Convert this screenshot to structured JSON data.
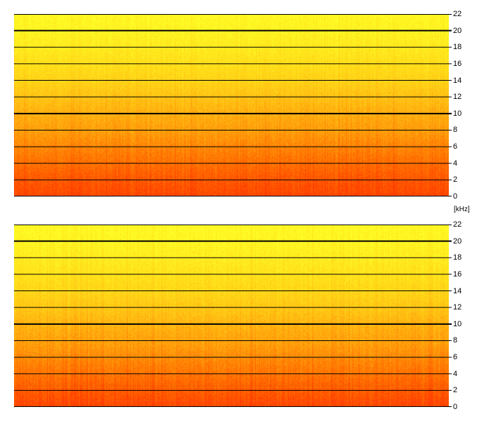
{
  "chart_data": [
    {
      "type": "heatmap",
      "description_axis": "frequency",
      "yaxis": {
        "unit": "kHz",
        "ylim": [
          0,
          22
        ],
        "ticks": [
          "22",
          "20",
          "18",
          "16",
          "14",
          "12",
          "10",
          "8",
          "6",
          "4",
          "2",
          "0"
        ],
        "tick_values": [
          22,
          20,
          18,
          16,
          14,
          12,
          10,
          8,
          6,
          4,
          2,
          0
        ],
        "major_gridlines": [
          20,
          10
        ]
      },
      "colormap": [
        "#ff3c00",
        "#ff6a00",
        "#ff9a0a",
        "#ffc414",
        "#ffe21a",
        "#ffff28"
      ],
      "intensity_by_frequency": [
        {
          "khz": 0,
          "level": 0.05
        },
        {
          "khz": 2,
          "level": 0.12
        },
        {
          "khz": 4,
          "level": 0.22
        },
        {
          "khz": 6,
          "level": 0.32
        },
        {
          "khz": 8,
          "level": 0.42
        },
        {
          "khz": 10,
          "level": 0.5
        },
        {
          "khz": 12,
          "level": 0.6
        },
        {
          "khz": 14,
          "level": 0.7
        },
        {
          "khz": 16,
          "level": 0.78
        },
        {
          "khz": 18,
          "level": 0.86
        },
        {
          "khz": 20,
          "level": 0.92
        },
        {
          "khz": 22,
          "level": 0.95
        }
      ]
    },
    {
      "type": "heatmap",
      "description_axis": "frequency",
      "yaxis": {
        "unit": "kHz",
        "ylim": [
          0,
          22
        ],
        "ticks": [
          "22",
          "20",
          "18",
          "16",
          "14",
          "12",
          "10",
          "8",
          "6",
          "4",
          "2",
          "0"
        ],
        "tick_values": [
          22,
          20,
          18,
          16,
          14,
          12,
          10,
          8,
          6,
          4,
          2,
          0
        ],
        "major_gridlines": [
          20,
          10
        ]
      },
      "colormap": [
        "#ff3c00",
        "#ff6a00",
        "#ff9a0a",
        "#ffc414",
        "#ffe21a",
        "#ffff28"
      ],
      "intensity_by_frequency": [
        {
          "khz": 0,
          "level": 0.04
        },
        {
          "khz": 2,
          "level": 0.14
        },
        {
          "khz": 4,
          "level": 0.24
        },
        {
          "khz": 6,
          "level": 0.34
        },
        {
          "khz": 8,
          "level": 0.44
        },
        {
          "khz": 10,
          "level": 0.52
        },
        {
          "khz": 12,
          "level": 0.63
        },
        {
          "khz": 14,
          "level": 0.72
        },
        {
          "khz": 16,
          "level": 0.8
        },
        {
          "khz": 18,
          "level": 0.87
        },
        {
          "khz": 20,
          "level": 0.93
        },
        {
          "khz": 22,
          "level": 0.96
        }
      ]
    }
  ],
  "unit_label": "[kHz]"
}
